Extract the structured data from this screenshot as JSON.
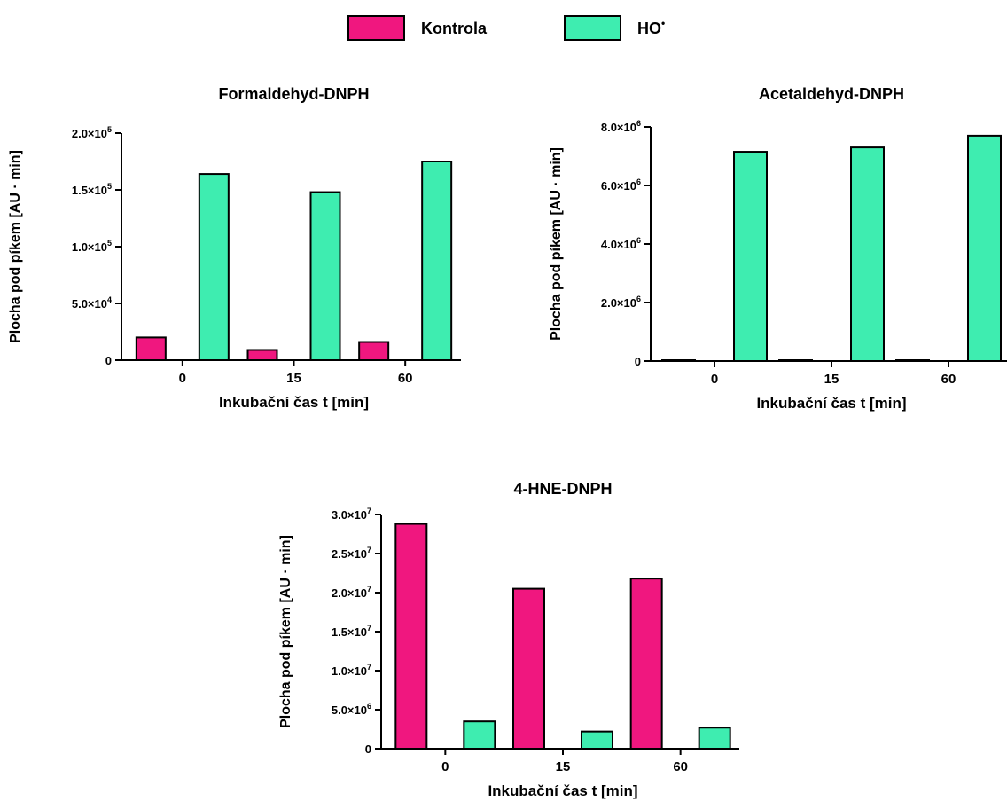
{
  "legend": [
    {
      "label": "Kontrola",
      "color": "#F0177F"
    },
    {
      "label": "HO",
      "sup": "•",
      "color": "#3EEDB0"
    }
  ],
  "chart_data": [
    {
      "type": "bar",
      "title": "Formaldehyd-DNPH",
      "xlabel": "Inkubační čas t [min]",
      "ylabel": "Plocha pod píkem [AU · min]",
      "categories": [
        "0",
        "15",
        "60"
      ],
      "series": [
        {
          "name": "Kontrola",
          "values": [
            20000,
            9000,
            16000
          ]
        },
        {
          "name": "HO•",
          "values": [
            164000,
            148000,
            175000
          ]
        }
      ],
      "ylim": [
        0,
        200000
      ],
      "yticks": [
        {
          "value": 0,
          "mantissa": "0",
          "exp": ""
        },
        {
          "value": 50000,
          "mantissa": "5.0×10",
          "exp": "4"
        },
        {
          "value": 100000,
          "mantissa": "1.0×10",
          "exp": "5"
        },
        {
          "value": 150000,
          "mantissa": "1.5×10",
          "exp": "5"
        },
        {
          "value": 200000,
          "mantissa": "2.0×10",
          "exp": "5"
        }
      ]
    },
    {
      "type": "bar",
      "title": "Acetaldehyd-DNPH",
      "xlabel": "Inkubační čas t [min]",
      "ylabel": "Plocha pod píkem [AU · min]",
      "categories": [
        "0",
        "15",
        "60"
      ],
      "series": [
        {
          "name": "Kontrola",
          "values": [
            30000,
            30000,
            30000
          ]
        },
        {
          "name": "HO•",
          "values": [
            7150000,
            7300000,
            7700000
          ]
        }
      ],
      "ylim": [
        0,
        8000000
      ],
      "yticks": [
        {
          "value": 0,
          "mantissa": "0",
          "exp": ""
        },
        {
          "value": 2000000,
          "mantissa": "2.0×10",
          "exp": "6"
        },
        {
          "value": 4000000,
          "mantissa": "4.0×10",
          "exp": "6"
        },
        {
          "value": 6000000,
          "mantissa": "6.0×10",
          "exp": "6"
        },
        {
          "value": 8000000,
          "mantissa": "8.0×10",
          "exp": "6"
        }
      ]
    },
    {
      "type": "bar",
      "title": "4-HNE-DNPH",
      "xlabel": "Inkubační čas t [min]",
      "ylabel": "Plocha pod píkem [AU · min]",
      "categories": [
        "0",
        "15",
        "60"
      ],
      "series": [
        {
          "name": "Kontrola",
          "values": [
            28800000,
            20500000,
            21800000
          ]
        },
        {
          "name": "HO•",
          "values": [
            3500000,
            2200000,
            2700000
          ]
        }
      ],
      "ylim": [
        0,
        30000000
      ],
      "yticks": [
        {
          "value": 0,
          "mantissa": "0",
          "exp": ""
        },
        {
          "value": 5000000,
          "mantissa": "5.0×10",
          "exp": "6"
        },
        {
          "value": 10000000,
          "mantissa": "1.0×10",
          "exp": "7"
        },
        {
          "value": 15000000,
          "mantissa": "1.5×10",
          "exp": "7"
        },
        {
          "value": 20000000,
          "mantissa": "2.0×10",
          "exp": "7"
        },
        {
          "value": 25000000,
          "mantissa": "2.5×10",
          "exp": "7"
        },
        {
          "value": 30000000,
          "mantissa": "3.0×10",
          "exp": "7"
        }
      ]
    }
  ]
}
